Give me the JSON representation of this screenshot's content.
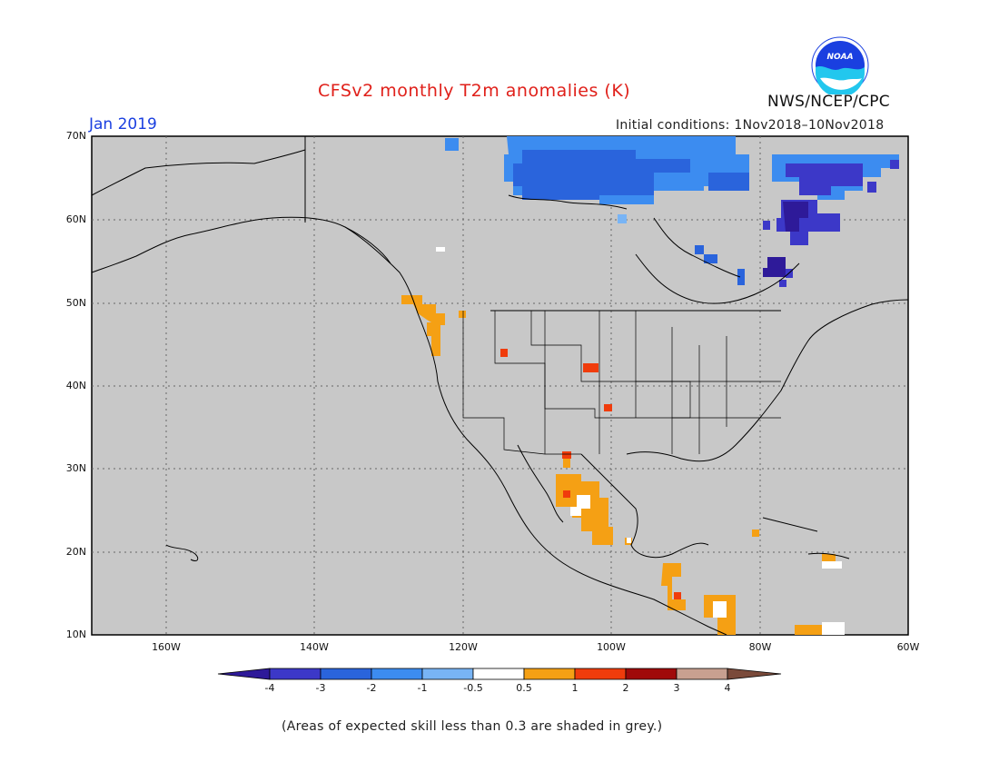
{
  "title": "CFSv2 monthly T2m anomalies (K)",
  "month": "Jan 2019",
  "initial_conditions": "Initial conditions: 1Nov2018–10Nov2018",
  "agency": "NWS/NCEP/CPC",
  "logo_text": "NOAA",
  "footnote": "(Areas of expected skill less than 0.3 are shaded in grey.)",
  "map": {
    "lat_labels": [
      "70N",
      "60N",
      "50N",
      "40N",
      "30N",
      "20N",
      "10N"
    ],
    "lon_labels": [
      "160W",
      "140W",
      "120W",
      "100W",
      "80W",
      "60W"
    ],
    "grid": "dotted",
    "extent": {
      "lon": [
        -170,
        -60
      ],
      "lat": [
        10,
        70
      ]
    }
  },
  "colorbar": {
    "labels": [
      "-4",
      "-3",
      "-2",
      "-1",
      "-0.5",
      "0.5",
      "1",
      "2",
      "3",
      "4"
    ],
    "colors": {
      "below_-4": "#2e1a99",
      "-4_-3": "#3c38c8",
      "-3_-2": "#2a64dc",
      "-2_-1": "#3c8cf0",
      "-1_-0.5": "#78b4f5",
      "-0.5_0.5": "#ffffff",
      "0.5_1": "#f5a014",
      "1_2": "#f03c0c",
      "2_3": "#a00a0a",
      "3_4": "#c8a090",
      "above_4": "#7a4a3a"
    }
  },
  "colors": {
    "background_grey": "#c8c8c8",
    "title_red": "#e0201a",
    "month_blue": "#1a3fe0"
  }
}
